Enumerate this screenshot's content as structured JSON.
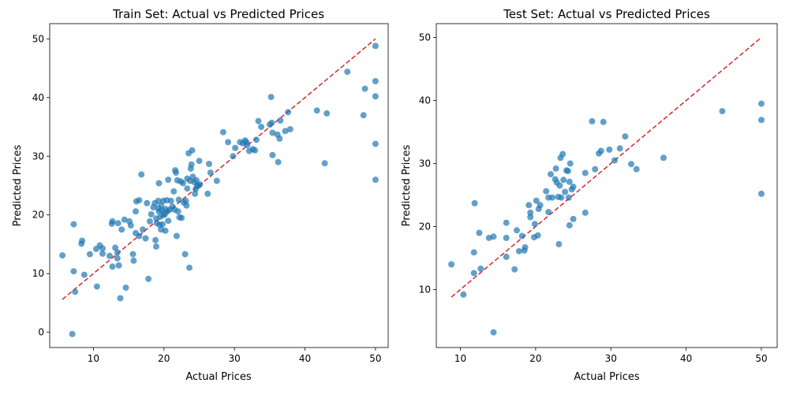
{
  "chart_data": [
    {
      "type": "scatter",
      "title": "Train Set: Actual vs Predicted Prices",
      "xlabel": "Actual Prices",
      "ylabel": "Predicted Prices",
      "xlim": [
        3.8,
        51.8
      ],
      "ylim": [
        -2.6,
        52.6
      ],
      "xticks": [
        10,
        20,
        30,
        40,
        50
      ],
      "yticks": [
        0,
        10,
        20,
        30,
        40,
        50
      ],
      "point_color": "#1f77b4",
      "line_color": "#d62728",
      "reference_line": {
        "from": [
          5.6,
          5.6
        ],
        "to": [
          50,
          50
        ]
      },
      "points": [
        [
          5.6,
          13.1
        ],
        [
          7.0,
          -0.3
        ],
        [
          7.2,
          10.4
        ],
        [
          7.2,
          18.4
        ],
        [
          7.4,
          6.9
        ],
        [
          8.3,
          15.1
        ],
        [
          8.4,
          15.6
        ],
        [
          8.7,
          9.8
        ],
        [
          9.5,
          13.3
        ],
        [
          10.4,
          14.2
        ],
        [
          10.5,
          7.8
        ],
        [
          10.9,
          14.8
        ],
        [
          11.3,
          14.3
        ],
        [
          11.3,
          13.4
        ],
        [
          12.3,
          13.0
        ],
        [
          12.6,
          18.5
        ],
        [
          12.7,
          18.9
        ],
        [
          12.7,
          11.2
        ],
        [
          13.1,
          14.4
        ],
        [
          13.4,
          13.6
        ],
        [
          13.4,
          12.6
        ],
        [
          13.5,
          18.6
        ],
        [
          13.6,
          11.4
        ],
        [
          13.8,
          5.8
        ],
        [
          14.0,
          17.5
        ],
        [
          14.4,
          19.2
        ],
        [
          14.6,
          7.6
        ],
        [
          15.1,
          18.9
        ],
        [
          15.3,
          18.2
        ],
        [
          15.6,
          13.3
        ],
        [
          15.7,
          12.2
        ],
        [
          16.0,
          20.6
        ],
        [
          16.0,
          16.9
        ],
        [
          16.1,
          22.3
        ],
        [
          16.5,
          22.5
        ],
        [
          16.5,
          16.4
        ],
        [
          16.8,
          26.9
        ],
        [
          17.0,
          17.5
        ],
        [
          17.4,
          16.0
        ],
        [
          17.6,
          22.0
        ],
        [
          17.8,
          9.1
        ],
        [
          18.0,
          18.9
        ],
        [
          18.2,
          20.1
        ],
        [
          18.5,
          21.3
        ],
        [
          18.7,
          22.0
        ],
        [
          18.8,
          15.7
        ],
        [
          18.9,
          14.6
        ],
        [
          18.9,
          19.4
        ],
        [
          19.0,
          18.6
        ],
        [
          19.2,
          22.4
        ],
        [
          19.2,
          21.1
        ],
        [
          19.3,
          25.4
        ],
        [
          19.3,
          20.6
        ],
        [
          19.4,
          18.3
        ],
        [
          19.5,
          19.7
        ],
        [
          19.6,
          17.5
        ],
        [
          19.6,
          21.6
        ],
        [
          19.7,
          20.8
        ],
        [
          19.8,
          18.4
        ],
        [
          19.9,
          22.4
        ],
        [
          20.0,
          20.0
        ],
        [
          20.1,
          20.1
        ],
        [
          20.2,
          17.3
        ],
        [
          20.2,
          21.0
        ],
        [
          20.4,
          22.5
        ],
        [
          20.5,
          20.6
        ],
        [
          20.6,
          26.0
        ],
        [
          20.6,
          19.0
        ],
        [
          20.8,
          20.9
        ],
        [
          21.0,
          22.4
        ],
        [
          21.2,
          21.4
        ],
        [
          21.4,
          24.0
        ],
        [
          21.5,
          20.9
        ],
        [
          21.6,
          27.6
        ],
        [
          21.7,
          27.2
        ],
        [
          21.8,
          16.4
        ],
        [
          21.9,
          25.9
        ],
        [
          22.0,
          20.6
        ],
        [
          22.1,
          22.6
        ],
        [
          22.2,
          19.6
        ],
        [
          22.4,
          25.7
        ],
        [
          22.5,
          19.5
        ],
        [
          22.7,
          25.4
        ],
        [
          22.8,
          22.1
        ],
        [
          23.0,
          13.3
        ],
        [
          23.1,
          22.4
        ],
        [
          23.2,
          21.6
        ],
        [
          23.3,
          26.2
        ],
        [
          23.3,
          24.5
        ],
        [
          23.5,
          30.5
        ],
        [
          23.6,
          11.0
        ],
        [
          23.7,
          25.8
        ],
        [
          23.8,
          27.9
        ],
        [
          23.9,
          28.6
        ],
        [
          24.0,
          31.0
        ],
        [
          24.1,
          26.5
        ],
        [
          24.3,
          25.6
        ],
        [
          24.4,
          23.6
        ],
        [
          24.5,
          24.4
        ],
        [
          24.6,
          25.9
        ],
        [
          24.7,
          24.9
        ],
        [
          24.9,
          25.0
        ],
        [
          25.0,
          29.2
        ],
        [
          25.1,
          25.2
        ],
        [
          26.2,
          23.6
        ],
        [
          26.4,
          28.7
        ],
        [
          26.6,
          27.2
        ],
        [
          27.5,
          25.8
        ],
        [
          28.4,
          34.1
        ],
        [
          29.1,
          32.4
        ],
        [
          29.8,
          30.0
        ],
        [
          30.1,
          31.4
        ],
        [
          30.8,
          32.4
        ],
        [
          31.2,
          32.2
        ],
        [
          31.5,
          32.7
        ],
        [
          31.7,
          32.4
        ],
        [
          31.8,
          31.9
        ],
        [
          32.1,
          30.9
        ],
        [
          32.6,
          31.2
        ],
        [
          32.9,
          31.0
        ],
        [
          33.1,
          32.8
        ],
        [
          33.4,
          36.0
        ],
        [
          33.8,
          35.0
        ],
        [
          35.0,
          35.4
        ],
        [
          35.2,
          40.1
        ],
        [
          35.3,
          35.7
        ],
        [
          35.4,
          30.2
        ],
        [
          35.4,
          34.0
        ],
        [
          36.1,
          33.7
        ],
        [
          36.2,
          29.0
        ],
        [
          36.4,
          33.0
        ],
        [
          36.5,
          36.1
        ],
        [
          37.2,
          34.3
        ],
        [
          37.6,
          37.5
        ],
        [
          37.9,
          34.6
        ],
        [
          41.7,
          37.8
        ],
        [
          42.8,
          28.8
        ],
        [
          43.1,
          37.3
        ],
        [
          46.0,
          44.4
        ],
        [
          48.3,
          37.0
        ],
        [
          48.5,
          41.5
        ],
        [
          50.0,
          48.8
        ],
        [
          50.0,
          42.8
        ],
        [
          50.0,
          40.2
        ],
        [
          50.0,
          32.1
        ],
        [
          50.0,
          26.0
        ]
      ]
    },
    {
      "type": "scatter",
      "title": "Test Set: Actual vs Predicted Prices",
      "xlabel": "Actual Prices",
      "ylabel": "Predicted Prices",
      "xlim": [
        6.8,
        52.1
      ],
      "ylim": [
        0.8,
        52.2
      ],
      "xticks": [
        10,
        20,
        30,
        40,
        50
      ],
      "yticks": [
        10,
        20,
        30,
        40,
        50
      ],
      "point_color": "#1f77b4",
      "line_color": "#d62728",
      "reference_line": {
        "from": [
          8.8,
          8.8
        ],
        "to": [
          50,
          50
        ]
      },
      "points": [
        [
          8.8,
          14.0
        ],
        [
          10.4,
          9.2
        ],
        [
          11.8,
          12.6
        ],
        [
          11.8,
          15.9
        ],
        [
          11.9,
          23.7
        ],
        [
          12.5,
          19.0
        ],
        [
          12.7,
          13.3
        ],
        [
          13.8,
          18.2
        ],
        [
          14.4,
          3.2
        ],
        [
          14.4,
          18.4
        ],
        [
          16.1,
          15.2
        ],
        [
          16.1,
          18.2
        ],
        [
          16.1,
          20.6
        ],
        [
          17.2,
          13.2
        ],
        [
          17.5,
          19.4
        ],
        [
          17.8,
          16.1
        ],
        [
          18.2,
          18.5
        ],
        [
          18.5,
          16.2
        ],
        [
          18.6,
          16.7
        ],
        [
          19.1,
          23.4
        ],
        [
          19.3,
          22.2
        ],
        [
          19.3,
          21.5
        ],
        [
          19.8,
          18.3
        ],
        [
          19.9,
          20.4
        ],
        [
          20.1,
          24.1
        ],
        [
          20.3,
          18.6
        ],
        [
          20.4,
          22.8
        ],
        [
          20.6,
          23.4
        ],
        [
          21.4,
          25.6
        ],
        [
          21.7,
          24.6
        ],
        [
          21.7,
          22.3
        ],
        [
          22.0,
          28.3
        ],
        [
          22.2,
          24.6
        ],
        [
          22.6,
          27.5
        ],
        [
          22.7,
          29.2
        ],
        [
          22.8,
          27.0
        ],
        [
          23.0,
          24.7
        ],
        [
          23.1,
          17.2
        ],
        [
          23.2,
          26.5
        ],
        [
          23.3,
          30.9
        ],
        [
          23.4,
          24.6
        ],
        [
          23.6,
          31.5
        ],
        [
          23.7,
          27.4
        ],
        [
          23.9,
          25.5
        ],
        [
          24.1,
          28.9
        ],
        [
          24.3,
          28.8
        ],
        [
          24.4,
          24.6
        ],
        [
          24.5,
          20.2
        ],
        [
          24.5,
          27.1
        ],
        [
          24.6,
          30.0
        ],
        [
          24.8,
          25.9
        ],
        [
          25.0,
          26.3
        ],
        [
          25.0,
          21.2
        ],
        [
          26.6,
          28.5
        ],
        [
          26.6,
          22.2
        ],
        [
          27.5,
          36.7
        ],
        [
          27.9,
          29.1
        ],
        [
          28.4,
          31.6
        ],
        [
          28.7,
          32.0
        ],
        [
          29.0,
          36.6
        ],
        [
          29.8,
          32.2
        ],
        [
          30.5,
          30.5
        ],
        [
          31.2,
          32.4
        ],
        [
          31.9,
          34.3
        ],
        [
          32.7,
          29.9
        ],
        [
          33.4,
          29.1
        ],
        [
          37.0,
          30.9
        ],
        [
          44.8,
          38.3
        ],
        [
          50.0,
          39.5
        ],
        [
          50.0,
          36.9
        ],
        [
          50.0,
          25.2
        ]
      ]
    }
  ]
}
